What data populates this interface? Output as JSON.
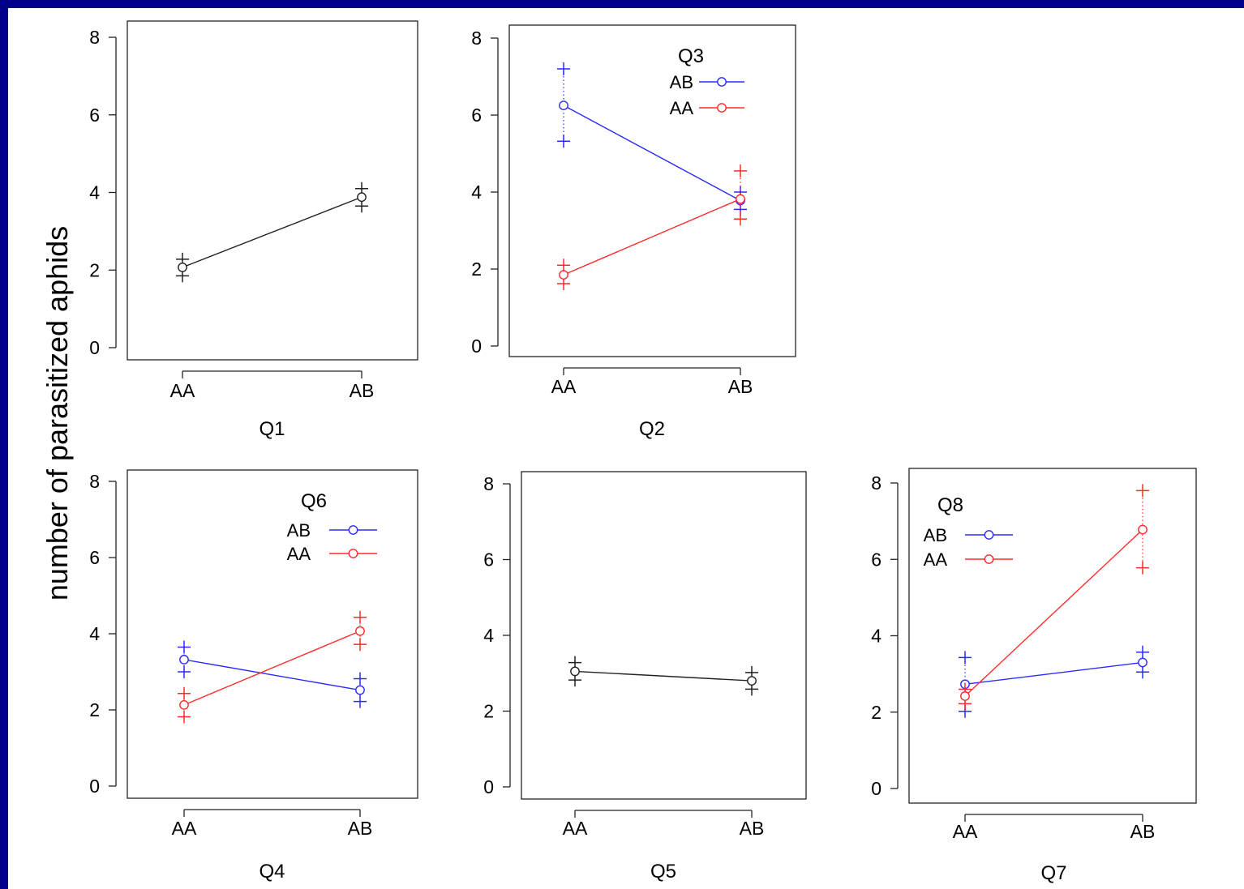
{
  "ylabel": "number of parasitized aphids",
  "colors": {
    "black": "#222222",
    "blue": "#2b2bff",
    "red": "#ff2b2b",
    "frame": "#222222"
  },
  "chart_data": [
    {
      "id": "q1",
      "type": "line",
      "xlabel": "Q1",
      "categories": [
        "AA",
        "AB"
      ],
      "ylim": [
        0,
        8
      ],
      "yticks": [
        0,
        2,
        4,
        6,
        8
      ],
      "legend_title": "",
      "grid": false,
      "series": [
        {
          "color": "black",
          "values": [
            2.07,
            3.88
          ],
          "upper": [
            2.28,
            4.1
          ],
          "lower": [
            1.85,
            3.65
          ]
        }
      ]
    },
    {
      "id": "q2",
      "type": "line",
      "xlabel": "Q2",
      "categories": [
        "AA",
        "AB"
      ],
      "ylim": [
        0,
        8
      ],
      "yticks": [
        0,
        2,
        4,
        6,
        8
      ],
      "legend_title": "Q3",
      "legend_position": "top-right",
      "grid": false,
      "series": [
        {
          "name": "AB",
          "color": "blue",
          "values": [
            6.25,
            3.78
          ],
          "upper": [
            7.2,
            4.0
          ],
          "lower": [
            5.32,
            3.55
          ]
        },
        {
          "name": "AA",
          "color": "red",
          "values": [
            1.85,
            3.82
          ],
          "upper": [
            2.1,
            4.55
          ],
          "lower": [
            1.62,
            3.3
          ]
        }
      ]
    },
    {
      "id": "q4",
      "type": "line",
      "xlabel": "Q4",
      "categories": [
        "AA",
        "AB"
      ],
      "ylim": [
        0,
        8
      ],
      "yticks": [
        0,
        2,
        4,
        6,
        8
      ],
      "legend_title": "Q6",
      "legend_position": "top-right",
      "grid": false,
      "series": [
        {
          "name": "AB",
          "color": "blue",
          "values": [
            3.32,
            2.52
          ],
          "upper": [
            3.65,
            2.82
          ],
          "lower": [
            3.0,
            2.22
          ]
        },
        {
          "name": "AA",
          "color": "red",
          "values": [
            2.13,
            4.07
          ],
          "upper": [
            2.43,
            4.43
          ],
          "lower": [
            1.82,
            3.72
          ]
        }
      ]
    },
    {
      "id": "q5",
      "type": "line",
      "xlabel": "Q5",
      "categories": [
        "AA",
        "AB"
      ],
      "ylim": [
        0,
        8
      ],
      "yticks": [
        0,
        2,
        4,
        6,
        8
      ],
      "legend_title": "",
      "grid": false,
      "series": [
        {
          "color": "black",
          "values": [
            3.05,
            2.8
          ],
          "upper": [
            3.28,
            3.02
          ],
          "lower": [
            2.82,
            2.58
          ]
        }
      ]
    },
    {
      "id": "q7",
      "type": "line",
      "xlabel": "Q7",
      "categories": [
        "AA",
        "AB"
      ],
      "ylim": [
        0,
        8
      ],
      "yticks": [
        0,
        2,
        4,
        6,
        8
      ],
      "legend_title": "Q8",
      "legend_position": "top-left",
      "grid": false,
      "series": [
        {
          "name": "AB",
          "color": "blue",
          "values": [
            2.73,
            3.3
          ],
          "upper": [
            3.43,
            3.57
          ],
          "lower": [
            2.02,
            3.05
          ]
        },
        {
          "name": "AA",
          "color": "red",
          "values": [
            2.42,
            6.78
          ],
          "upper": [
            2.6,
            7.8
          ],
          "lower": [
            2.22,
            5.78
          ]
        }
      ]
    }
  ]
}
